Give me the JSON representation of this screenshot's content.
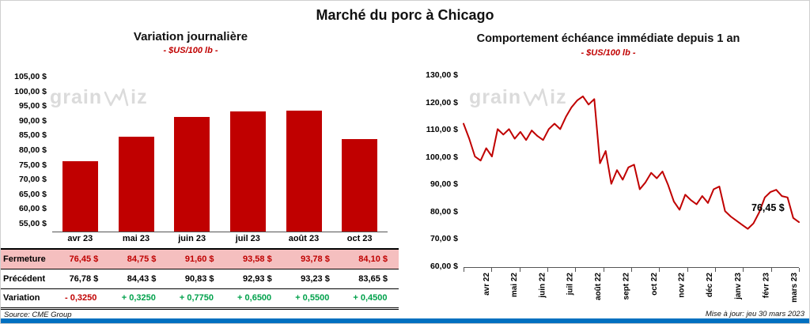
{
  "page": {
    "title": "Marché du porc à Chicago",
    "source": "Source: CME Group",
    "updated": "Mise à jour: jeu 30 mars 2023"
  },
  "watermark": {
    "grain": "grain",
    "iz": "iz"
  },
  "colors": {
    "red": "#C00000",
    "green": "#00A14B",
    "pink": "#F5BFBF",
    "blue": "#0070C0",
    "wm": "#DBDBDB"
  },
  "chart_data": [
    {
      "type": "bar",
      "title": "Variation journalière",
      "subtitle": "- $US/100 lb -",
      "categories": [
        "avr 23",
        "mai 23",
        "juin 23",
        "juil 23",
        "août 23",
        "oct 23"
      ],
      "values": [
        76.45,
        84.75,
        91.6,
        93.58,
        93.78,
        84.1
      ],
      "bar_color": "#C00000",
      "ylim": [
        52.5,
        107.5
      ],
      "grid": false,
      "y_ticks": [
        {
          "v": 55,
          "label": "55,00 $"
        },
        {
          "v": 60,
          "label": "60,00 $"
        },
        {
          "v": 65,
          "label": "65,00 $"
        },
        {
          "v": 70,
          "label": "70,00 $"
        },
        {
          "v": 75,
          "label": "75,00 $"
        },
        {
          "v": 80,
          "label": "80,00 $"
        },
        {
          "v": 85,
          "label": "85,00 $"
        },
        {
          "v": 90,
          "label": "90,00 $"
        },
        {
          "v": 95,
          "label": "95,00 $"
        },
        {
          "v": 100,
          "label": "100,00 $"
        },
        {
          "v": 105,
          "label": "105,00 $"
        }
      ],
      "table": {
        "rows": [
          {
            "label": "Fermeture",
            "values": [
              "76,45  $",
              "84,75  $",
              "91,60  $",
              "93,58  $",
              "93,78  $",
              "84,10  $"
            ]
          },
          {
            "label": "Précédent",
            "values": [
              "76,78  $",
              "84,43  $",
              "90,83  $",
              "92,93  $",
              "93,23  $",
              "83,65  $"
            ]
          },
          {
            "label": "Variation",
            "values": [
              "- 0,3250",
              "+ 0,3250",
              "+ 0,7750",
              "+ 0,6500",
              "+ 0,5500",
              "+ 0,4500"
            ]
          }
        ]
      }
    },
    {
      "type": "line",
      "title": "Comportement échéance immédiate depuis 1 an",
      "subtitle": "- $US/100 lb -",
      "line_color": "#C00000",
      "ylim": [
        60,
        130
      ],
      "grid": false,
      "y_ticks": [
        {
          "v": 60,
          "label": "60,00 $"
        },
        {
          "v": 70,
          "label": "70,00 $"
        },
        {
          "v": 80,
          "label": "80,00 $"
        },
        {
          "v": 90,
          "label": "90,00 $"
        },
        {
          "v": 100,
          "label": "100,00 $"
        },
        {
          "v": 110,
          "label": "110,00 $"
        },
        {
          "v": 120,
          "label": "120,00 $"
        },
        {
          "v": 130,
          "label": "130,00 $"
        }
      ],
      "x_tick_labels": [
        "avr 22",
        "mai 22",
        "juin 22",
        "juil 22",
        "août 22",
        "sept 22",
        "oct 22",
        "nov 22",
        "déc 22",
        "janv 23",
        "févr 23",
        "mars 23"
      ],
      "values": [
        112.5,
        107,
        100.5,
        99,
        103.5,
        100.5,
        110.5,
        108.5,
        110.5,
        107,
        109.5,
        106.5,
        110,
        108,
        106.5,
        110.5,
        112.5,
        110.5,
        115,
        118.5,
        121,
        122.5,
        119.5,
        121.5,
        98,
        102.5,
        90.5,
        95.5,
        92,
        96.5,
        97.5,
        88.5,
        91,
        94.5,
        92.5,
        95,
        90,
        84,
        81,
        86.5,
        84.5,
        83,
        86,
        83.5,
        88.5,
        89.5,
        80.5,
        78.5,
        77,
        75.5,
        74,
        76,
        80,
        85.5,
        87.5,
        88.3,
        86,
        85.5,
        78,
        76.45
      ],
      "end_label": "76,45 $"
    }
  ]
}
